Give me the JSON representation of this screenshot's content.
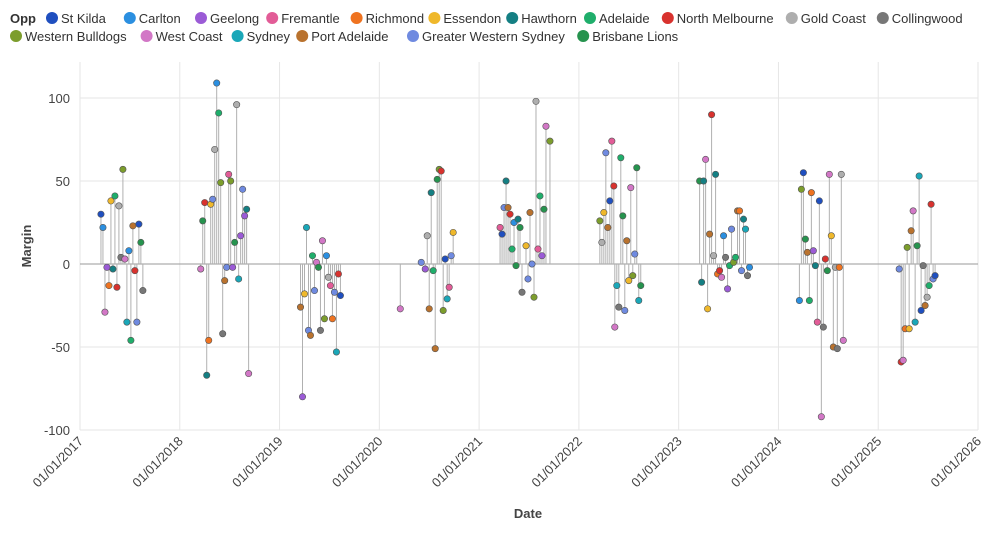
{
  "chart_data": {
    "type": "scatter",
    "subtype": "lollipop",
    "legend_title": "Opp",
    "xlabel": "Date",
    "ylabel": "Margin",
    "ylim": [
      -100,
      115
    ],
    "yticks": [
      100,
      50,
      0,
      -50,
      -100
    ],
    "xticks": [
      "01/01/2017",
      "01/01/2018",
      "01/01/2019",
      "01/01/2020",
      "01/01/2021",
      "01/01/2022",
      "01/01/2023",
      "01/01/2024",
      "01/01/2025",
      "01/01/2026"
    ],
    "xlim": [
      2017.0,
      2026.0
    ],
    "grid": true,
    "legend_position": "top",
    "teams": [
      {
        "name": "St Kilda",
        "color": "#1f4fbf"
      },
      {
        "name": "Carlton",
        "color": "#2b8fe0"
      },
      {
        "name": "Geelong",
        "color": "#9b5bd6"
      },
      {
        "name": "Fremantle",
        "color": "#e25c97"
      },
      {
        "name": "Richmond",
        "color": "#ef7320"
      },
      {
        "name": "Essendon",
        "color": "#efb82b"
      },
      {
        "name": "Hawthorn",
        "color": "#147f83"
      },
      {
        "name": "Adelaide",
        "color": "#1fae6b"
      },
      {
        "name": "North Melbourne",
        "color": "#d8322e"
      },
      {
        "name": "Gold Coast",
        "color": "#aeaeae"
      },
      {
        "name": "Collingwood",
        "color": "#777777"
      },
      {
        "name": "Western Bulldogs",
        "color": "#7c9d2c"
      },
      {
        "name": "West Coast",
        "color": "#d277c6"
      },
      {
        "name": "Sydney",
        "color": "#1aa7b8"
      },
      {
        "name": "Port Adelaide",
        "color": "#b9722e"
      },
      {
        "name": "Greater Western Sydney",
        "color": "#6f8ae0"
      },
      {
        "name": "Brisbane Lions",
        "color": "#26934e"
      }
    ],
    "points": [
      {
        "x": 2017.21,
        "y": 30,
        "opp": "St Kilda"
      },
      {
        "x": 2017.23,
        "y": 22,
        "opp": "Carlton"
      },
      {
        "x": 2017.25,
        "y": -29,
        "opp": "West Coast"
      },
      {
        "x": 2017.27,
        "y": -2,
        "opp": "Geelong"
      },
      {
        "x": 2017.29,
        "y": -13,
        "opp": "Richmond"
      },
      {
        "x": 2017.31,
        "y": 38,
        "opp": "Essendon"
      },
      {
        "x": 2017.33,
        "y": -3,
        "opp": "Hawthorn"
      },
      {
        "x": 2017.35,
        "y": 41,
        "opp": "Adelaide"
      },
      {
        "x": 2017.37,
        "y": -14,
        "opp": "North Melbourne"
      },
      {
        "x": 2017.39,
        "y": 35,
        "opp": "Gold Coast"
      },
      {
        "x": 2017.41,
        "y": 4,
        "opp": "Collingwood"
      },
      {
        "x": 2017.43,
        "y": 57,
        "opp": "Western Bulldogs"
      },
      {
        "x": 2017.45,
        "y": 3,
        "opp": "West Coast"
      },
      {
        "x": 2017.47,
        "y": -35,
        "opp": "Sydney"
      },
      {
        "x": 2017.49,
        "y": 8,
        "opp": "Carlton"
      },
      {
        "x": 2017.51,
        "y": -46,
        "opp": "Adelaide"
      },
      {
        "x": 2017.53,
        "y": 23,
        "opp": "Port Adelaide"
      },
      {
        "x": 2017.55,
        "y": -4,
        "opp": "North Melbourne"
      },
      {
        "x": 2017.57,
        "y": -35,
        "opp": "Greater Western Sydney"
      },
      {
        "x": 2017.59,
        "y": 24,
        "opp": "St Kilda"
      },
      {
        "x": 2017.61,
        "y": 13,
        "opp": "Brisbane Lions"
      },
      {
        "x": 2017.63,
        "y": -16,
        "opp": "Collingwood"
      },
      {
        "x": 2018.21,
        "y": -3,
        "opp": "West Coast"
      },
      {
        "x": 2018.23,
        "y": 26,
        "opp": "Brisbane Lions"
      },
      {
        "x": 2018.25,
        "y": 37,
        "opp": "North Melbourne"
      },
      {
        "x": 2018.27,
        "y": -67,
        "opp": "Hawthorn"
      },
      {
        "x": 2018.29,
        "y": -46,
        "opp": "Richmond"
      },
      {
        "x": 2018.31,
        "y": 36,
        "opp": "Essendon"
      },
      {
        "x": 2018.33,
        "y": 39,
        "opp": "Greater Western Sydney"
      },
      {
        "x": 2018.35,
        "y": 69,
        "opp": "Gold Coast"
      },
      {
        "x": 2018.37,
        "y": 109,
        "opp": "Carlton"
      },
      {
        "x": 2018.39,
        "y": 91,
        "opp": "Adelaide"
      },
      {
        "x": 2018.41,
        "y": 49,
        "opp": "Western Bulldogs"
      },
      {
        "x": 2018.43,
        "y": -42,
        "opp": "Collingwood"
      },
      {
        "x": 2018.45,
        "y": -10,
        "opp": "Port Adelaide"
      },
      {
        "x": 2018.47,
        "y": -2,
        "opp": "Greater Western Sydney"
      },
      {
        "x": 2018.49,
        "y": 54,
        "opp": "Fremantle"
      },
      {
        "x": 2018.51,
        "y": 50,
        "opp": "Western Bulldogs"
      },
      {
        "x": 2018.53,
        "y": -2,
        "opp": "Geelong"
      },
      {
        "x": 2018.55,
        "y": 13,
        "opp": "Brisbane Lions"
      },
      {
        "x": 2018.57,
        "y": 96,
        "opp": "Gold Coast"
      },
      {
        "x": 2018.59,
        "y": -9,
        "opp": "Sydney"
      },
      {
        "x": 2018.61,
        "y": 17,
        "opp": "Geelong"
      },
      {
        "x": 2018.63,
        "y": 45,
        "opp": "Greater Western Sydney"
      },
      {
        "x": 2018.65,
        "y": 29,
        "opp": "Geelong"
      },
      {
        "x": 2018.67,
        "y": 33,
        "opp": "Hawthorn"
      },
      {
        "x": 2018.69,
        "y": -66,
        "opp": "West Coast"
      },
      {
        "x": 2019.21,
        "y": -26,
        "opp": "Port Adelaide"
      },
      {
        "x": 2019.23,
        "y": -80,
        "opp": "Geelong"
      },
      {
        "x": 2019.25,
        "y": -18,
        "opp": "Essendon"
      },
      {
        "x": 2019.27,
        "y": 22,
        "opp": "Sydney"
      },
      {
        "x": 2019.29,
        "y": -40,
        "opp": "Greater Western Sydney"
      },
      {
        "x": 2019.31,
        "y": -43,
        "opp": "Port Adelaide"
      },
      {
        "x": 2019.33,
        "y": 5,
        "opp": "Adelaide"
      },
      {
        "x": 2019.35,
        "y": -16,
        "opp": "Greater Western Sydney"
      },
      {
        "x": 2019.37,
        "y": 1,
        "opp": "West Coast"
      },
      {
        "x": 2019.39,
        "y": -2,
        "opp": "Brisbane Lions"
      },
      {
        "x": 2019.41,
        "y": -40,
        "opp": "Collingwood"
      },
      {
        "x": 2019.43,
        "y": 14,
        "opp": "West Coast"
      },
      {
        "x": 2019.45,
        "y": -33,
        "opp": "Western Bulldogs"
      },
      {
        "x": 2019.47,
        "y": 5,
        "opp": "Carlton"
      },
      {
        "x": 2019.49,
        "y": -8,
        "opp": "Gold Coast"
      },
      {
        "x": 2019.51,
        "y": -13,
        "opp": "Fremantle"
      },
      {
        "x": 2019.53,
        "y": -33,
        "opp": "Richmond"
      },
      {
        "x": 2019.55,
        "y": -17,
        "opp": "Greater Western Sydney"
      },
      {
        "x": 2019.57,
        "y": -53,
        "opp": "Sydney"
      },
      {
        "x": 2019.59,
        "y": -6,
        "opp": "North Melbourne"
      },
      {
        "x": 2019.61,
        "y": -19,
        "opp": "St Kilda"
      },
      {
        "x": 2020.21,
        "y": -27,
        "opp": "West Coast"
      },
      {
        "x": 2020.42,
        "y": 1,
        "opp": "Greater Western Sydney"
      },
      {
        "x": 2020.46,
        "y": -3,
        "opp": "Geelong"
      },
      {
        "x": 2020.48,
        "y": 17,
        "opp": "Gold Coast"
      },
      {
        "x": 2020.5,
        "y": -27,
        "opp": "Port Adelaide"
      },
      {
        "x": 2020.52,
        "y": 43,
        "opp": "Hawthorn"
      },
      {
        "x": 2020.54,
        "y": -4,
        "opp": "Adelaide"
      },
      {
        "x": 2020.56,
        "y": -51,
        "opp": "Port Adelaide"
      },
      {
        "x": 2020.58,
        "y": 51,
        "opp": "Brisbane Lions"
      },
      {
        "x": 2020.6,
        "y": 57,
        "opp": "Western Bulldogs"
      },
      {
        "x": 2020.62,
        "y": 56,
        "opp": "North Melbourne"
      },
      {
        "x": 2020.64,
        "y": -28,
        "opp": "Western Bulldogs"
      },
      {
        "x": 2020.66,
        "y": 3,
        "opp": "St Kilda"
      },
      {
        "x": 2020.68,
        "y": -21,
        "opp": "Sydney"
      },
      {
        "x": 2020.7,
        "y": -14,
        "opp": "Fremantle"
      },
      {
        "x": 2020.72,
        "y": 5,
        "opp": "Greater Western Sydney"
      },
      {
        "x": 2020.74,
        "y": 19,
        "opp": "Essendon"
      },
      {
        "x": 2021.21,
        "y": 22,
        "opp": "Fremantle"
      },
      {
        "x": 2021.23,
        "y": 18,
        "opp": "St Kilda"
      },
      {
        "x": 2021.25,
        "y": 34,
        "opp": "Greater Western Sydney"
      },
      {
        "x": 2021.27,
        "y": 50,
        "opp": "Hawthorn"
      },
      {
        "x": 2021.29,
        "y": 34,
        "opp": "Port Adelaide"
      },
      {
        "x": 2021.31,
        "y": 30,
        "opp": "North Melbourne"
      },
      {
        "x": 2021.33,
        "y": 9,
        "opp": "Adelaide"
      },
      {
        "x": 2021.35,
        "y": 25,
        "opp": "Carlton"
      },
      {
        "x": 2021.37,
        "y": -1,
        "opp": "Brisbane Lions"
      },
      {
        "x": 2021.39,
        "y": 27,
        "opp": "Hawthorn"
      },
      {
        "x": 2021.41,
        "y": 22,
        "opp": "Brisbane Lions"
      },
      {
        "x": 2021.43,
        "y": -17,
        "opp": "Collingwood"
      },
      {
        "x": 2021.47,
        "y": 11,
        "opp": "Essendon"
      },
      {
        "x": 2021.49,
        "y": -9,
        "opp": "Greater Western Sydney"
      },
      {
        "x": 2021.51,
        "y": 31,
        "opp": "Port Adelaide"
      },
      {
        "x": 2021.53,
        "y": 0,
        "opp": "Greater Western Sydney"
      },
      {
        "x": 2021.55,
        "y": -20,
        "opp": "Western Bulldogs"
      },
      {
        "x": 2021.57,
        "y": 98,
        "opp": "Gold Coast"
      },
      {
        "x": 2021.59,
        "y": 9,
        "opp": "Fremantle"
      },
      {
        "x": 2021.61,
        "y": 41,
        "opp": "Adelaide"
      },
      {
        "x": 2021.63,
        "y": 5,
        "opp": "Geelong"
      },
      {
        "x": 2021.65,
        "y": 33,
        "opp": "Brisbane Lions"
      },
      {
        "x": 2021.67,
        "y": 83,
        "opp": "West Coast"
      },
      {
        "x": 2021.71,
        "y": 74,
        "opp": "Western Bulldogs"
      },
      {
        "x": 2022.21,
        "y": 26,
        "opp": "Western Bulldogs"
      },
      {
        "x": 2022.23,
        "y": 13,
        "opp": "Gold Coast"
      },
      {
        "x": 2022.25,
        "y": 31,
        "opp": "Essendon"
      },
      {
        "x": 2022.27,
        "y": 67,
        "opp": "Greater Western Sydney"
      },
      {
        "x": 2022.29,
        "y": 22,
        "opp": "Port Adelaide"
      },
      {
        "x": 2022.31,
        "y": 38,
        "opp": "St Kilda"
      },
      {
        "x": 2022.33,
        "y": 74,
        "opp": "Fremantle"
      },
      {
        "x": 2022.35,
        "y": 47,
        "opp": "North Melbourne"
      },
      {
        "x": 2022.36,
        "y": -38,
        "opp": "West Coast"
      },
      {
        "x": 2022.38,
        "y": -13,
        "opp": "Sydney"
      },
      {
        "x": 2022.4,
        "y": -26,
        "opp": "Collingwood"
      },
      {
        "x": 2022.42,
        "y": 64,
        "opp": "Adelaide"
      },
      {
        "x": 2022.44,
        "y": 29,
        "opp": "Brisbane Lions"
      },
      {
        "x": 2022.46,
        "y": -28,
        "opp": "Greater Western Sydney"
      },
      {
        "x": 2022.48,
        "y": 14,
        "opp": "Port Adelaide"
      },
      {
        "x": 2022.5,
        "y": -10,
        "opp": "Essendon"
      },
      {
        "x": 2022.52,
        "y": 46,
        "opp": "West Coast"
      },
      {
        "x": 2022.54,
        "y": -7,
        "opp": "Western Bulldogs"
      },
      {
        "x": 2022.56,
        "y": 6,
        "opp": "Greater Western Sydney"
      },
      {
        "x": 2022.58,
        "y": 58,
        "opp": "Brisbane Lions"
      },
      {
        "x": 2022.6,
        "y": -22,
        "opp": "Sydney"
      },
      {
        "x": 2022.62,
        "y": -13,
        "opp": "Brisbane Lions"
      },
      {
        "x": 2023.21,
        "y": 50,
        "opp": "Brisbane Lions"
      },
      {
        "x": 2023.23,
        "y": -11,
        "opp": "Hawthorn"
      },
      {
        "x": 2023.25,
        "y": 50,
        "opp": "Hawthorn"
      },
      {
        "x": 2023.27,
        "y": 63,
        "opp": "West Coast"
      },
      {
        "x": 2023.29,
        "y": -27,
        "opp": "Essendon"
      },
      {
        "x": 2023.31,
        "y": 18,
        "opp": "Port Adelaide"
      },
      {
        "x": 2023.33,
        "y": 90,
        "opp": "North Melbourne"
      },
      {
        "x": 2023.35,
        "y": 5,
        "opp": "Gold Coast"
      },
      {
        "x": 2023.37,
        "y": 54,
        "opp": "Hawthorn"
      },
      {
        "x": 2023.39,
        "y": -6,
        "opp": "Richmond"
      },
      {
        "x": 2023.41,
        "y": -4,
        "opp": "North Melbourne"
      },
      {
        "x": 2023.43,
        "y": -8,
        "opp": "West Coast"
      },
      {
        "x": 2023.45,
        "y": 17,
        "opp": "Carlton"
      },
      {
        "x": 2023.47,
        "y": 4,
        "opp": "Collingwood"
      },
      {
        "x": 2023.49,
        "y": -15,
        "opp": "Geelong"
      },
      {
        "x": 2023.51,
        "y": -1,
        "opp": "Adelaide"
      },
      {
        "x": 2023.53,
        "y": 21,
        "opp": "Greater Western Sydney"
      },
      {
        "x": 2023.55,
        "y": 1,
        "opp": "Western Bulldogs"
      },
      {
        "x": 2023.57,
        "y": 4,
        "opp": "Adelaide"
      },
      {
        "x": 2023.59,
        "y": 32,
        "opp": "Port Adelaide"
      },
      {
        "x": 2023.61,
        "y": 32,
        "opp": "Richmond"
      },
      {
        "x": 2023.63,
        "y": -4,
        "opp": "Greater Western Sydney"
      },
      {
        "x": 2023.65,
        "y": 27,
        "opp": "Hawthorn"
      },
      {
        "x": 2023.67,
        "y": 21,
        "opp": "Sydney"
      },
      {
        "x": 2023.69,
        "y": -7,
        "opp": "Collingwood"
      },
      {
        "x": 2023.71,
        "y": -2,
        "opp": "Carlton"
      },
      {
        "x": 2024.21,
        "y": -22,
        "opp": "Carlton"
      },
      {
        "x": 2024.23,
        "y": 45,
        "opp": "Western Bulldogs"
      },
      {
        "x": 2024.25,
        "y": 55,
        "opp": "St Kilda"
      },
      {
        "x": 2024.27,
        "y": 15,
        "opp": "Brisbane Lions"
      },
      {
        "x": 2024.29,
        "y": 7,
        "opp": "Port Adelaide"
      },
      {
        "x": 2024.31,
        "y": -22,
        "opp": "Adelaide"
      },
      {
        "x": 2024.33,
        "y": 43,
        "opp": "Richmond"
      },
      {
        "x": 2024.35,
        "y": 8,
        "opp": "Geelong"
      },
      {
        "x": 2024.37,
        "y": -1,
        "opp": "Hawthorn"
      },
      {
        "x": 2024.39,
        "y": -35,
        "opp": "Fremantle"
      },
      {
        "x": 2024.41,
        "y": 38,
        "opp": "St Kilda"
      },
      {
        "x": 2024.43,
        "y": -92,
        "opp": "West Coast"
      },
      {
        "x": 2024.45,
        "y": -38,
        "opp": "Collingwood"
      },
      {
        "x": 2024.47,
        "y": 3,
        "opp": "North Melbourne"
      },
      {
        "x": 2024.49,
        "y": -4,
        "opp": "Brisbane Lions"
      },
      {
        "x": 2024.51,
        "y": 54,
        "opp": "West Coast"
      },
      {
        "x": 2024.53,
        "y": 17,
        "opp": "Essendon"
      },
      {
        "x": 2024.55,
        "y": -50,
        "opp": "Port Adelaide"
      },
      {
        "x": 2024.57,
        "y": -2,
        "opp": "Gold Coast"
      },
      {
        "x": 2024.59,
        "y": -51,
        "opp": "Collingwood"
      },
      {
        "x": 2024.61,
        "y": -2,
        "opp": "Richmond"
      },
      {
        "x": 2024.63,
        "y": 54,
        "opp": "Gold Coast"
      },
      {
        "x": 2024.65,
        "y": -46,
        "opp": "West Coast"
      },
      {
        "x": 2025.21,
        "y": -3,
        "opp": "Greater Western Sydney"
      },
      {
        "x": 2025.23,
        "y": -59,
        "opp": "North Melbourne"
      },
      {
        "x": 2025.25,
        "y": -58,
        "opp": "West Coast"
      },
      {
        "x": 2025.27,
        "y": -39,
        "opp": "Richmond"
      },
      {
        "x": 2025.29,
        "y": 10,
        "opp": "Western Bulldogs"
      },
      {
        "x": 2025.31,
        "y": -39,
        "opp": "Essendon"
      },
      {
        "x": 2025.33,
        "y": 20,
        "opp": "Port Adelaide"
      },
      {
        "x": 2025.35,
        "y": 32,
        "opp": "West Coast"
      },
      {
        "x": 2025.37,
        "y": -35,
        "opp": "Sydney"
      },
      {
        "x": 2025.39,
        "y": 11,
        "opp": "Brisbane Lions"
      },
      {
        "x": 2025.41,
        "y": 53,
        "opp": "Sydney"
      },
      {
        "x": 2025.43,
        "y": -28,
        "opp": "St Kilda"
      },
      {
        "x": 2025.45,
        "y": -1,
        "opp": "Collingwood"
      },
      {
        "x": 2025.47,
        "y": -25,
        "opp": "Port Adelaide"
      },
      {
        "x": 2025.49,
        "y": -20,
        "opp": "Gold Coast"
      },
      {
        "x": 2025.51,
        "y": -13,
        "opp": "Adelaide"
      },
      {
        "x": 2025.53,
        "y": 36,
        "opp": "North Melbourne"
      },
      {
        "x": 2025.55,
        "y": -9,
        "opp": "Greater Western Sydney"
      },
      {
        "x": 2025.57,
        "y": -7,
        "opp": "St Kilda"
      }
    ]
  }
}
